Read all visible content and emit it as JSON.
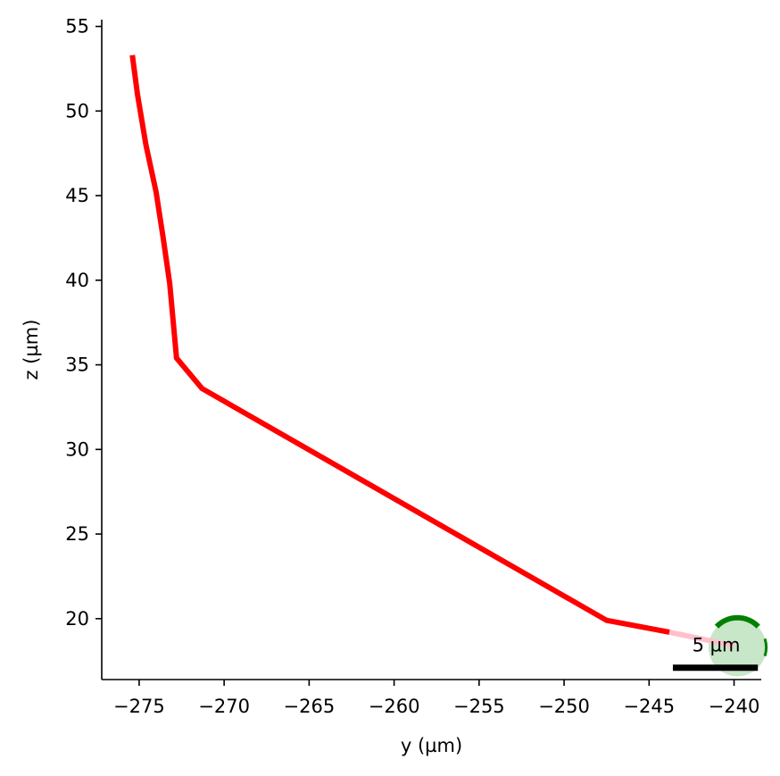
{
  "chart_data": {
    "type": "line",
    "title": "",
    "xlabel": "y (µm)",
    "ylabel": "z (µm)",
    "xlim": [
      -277.2,
      -238.4
    ],
    "ylim": [
      16.4,
      55.4
    ],
    "xticks": [
      -275,
      -270,
      -265,
      -260,
      -255,
      -250,
      -245,
      -240
    ],
    "xtick_labels": [
      "−275",
      "−270",
      "−265",
      "−260",
      "−255",
      "−250",
      "−245",
      "−240"
    ],
    "yticks": [
      20,
      25,
      30,
      35,
      40,
      45,
      50,
      55
    ],
    "ytick_labels": [
      "20",
      "25",
      "30",
      "35",
      "40",
      "45",
      "50",
      "55"
    ],
    "grid": false,
    "series": [
      {
        "color": "#ff0000",
        "x": [
          -275.4,
          -275.1,
          -274.6,
          -274.0,
          -273.6,
          -273.2,
          -272.8,
          -271.3,
          -247.5,
          -243.8
        ],
        "y": [
          53.3,
          51.0,
          48.0,
          45.2,
          42.6,
          39.8,
          35.4,
          33.6,
          19.9,
          19.2
        ]
      },
      {
        "color": "#ffc0cb",
        "x": [
          -243.8,
          -240.0
        ],
        "y": [
          19.2,
          18.4
        ]
      }
    ],
    "soma": {
      "x": -239.8,
      "y": 18.3,
      "radius": 1.7,
      "edge_color": "#008000",
      "fill_color": "#c8e6c8"
    },
    "scale_bar": {
      "label": "5 µm",
      "length": 5,
      "x_start": -243.6,
      "y": 17.1,
      "color": "#000000"
    }
  }
}
